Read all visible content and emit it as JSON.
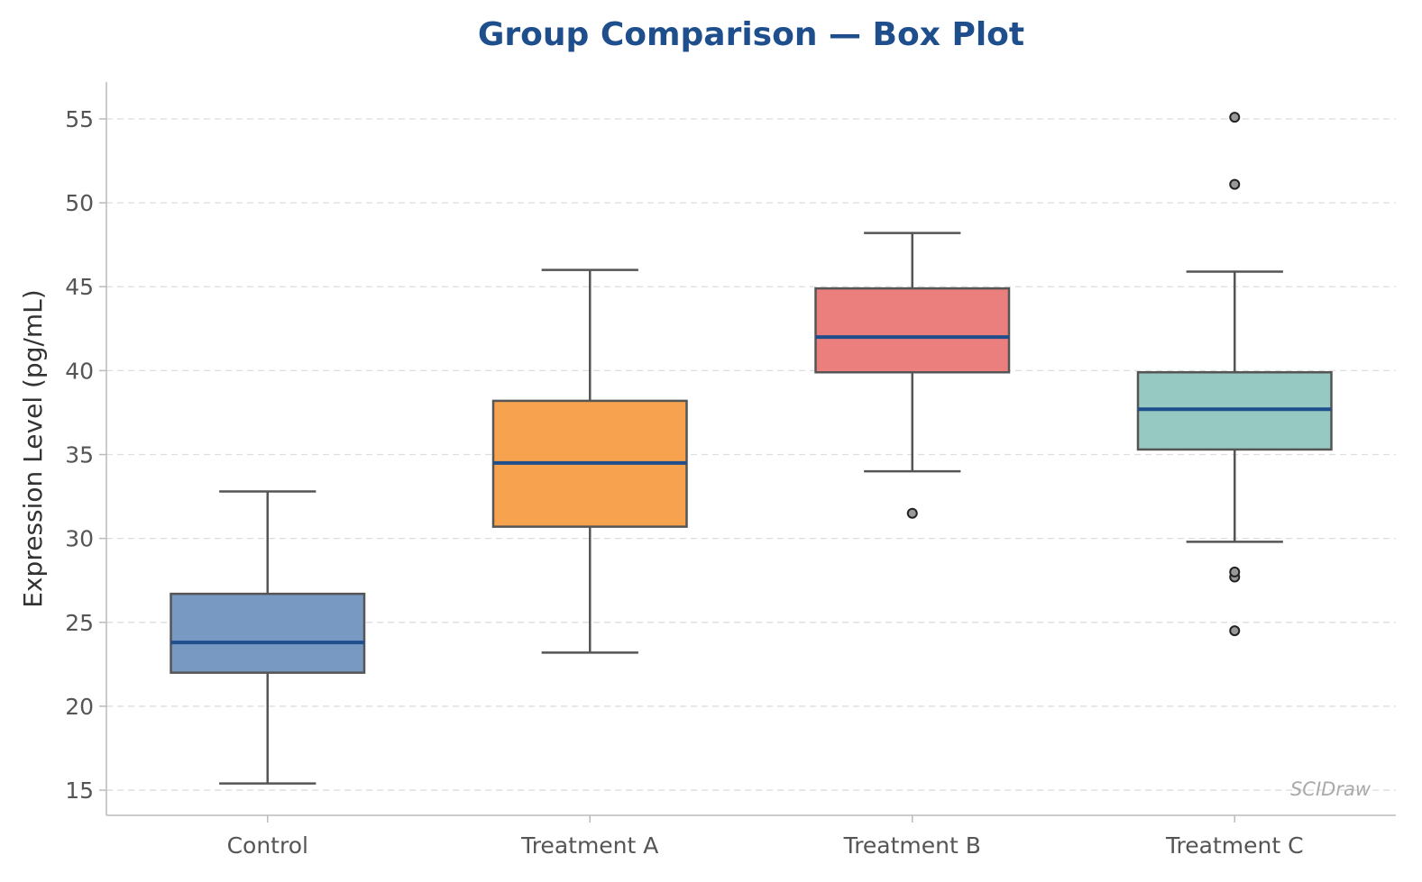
{
  "chart_data": {
    "type": "box",
    "title": "Group Comparison — Box Plot",
    "xlabel": "",
    "ylabel": "Expression Level (pg/mL)",
    "ylim": [
      13.5,
      57.2
    ],
    "yticks": [
      15,
      20,
      25,
      30,
      35,
      40,
      45,
      50,
      55
    ],
    "grid": "y-dashed",
    "categories": [
      "Control",
      "Treatment A",
      "Treatment B",
      "Treatment C"
    ],
    "groups": [
      {
        "name": "Control",
        "whisker_low": 15.4,
        "q1": 22.0,
        "median": 23.8,
        "q3": 26.7,
        "whisker_high": 32.8,
        "outliers": [],
        "color": "#7799c2"
      },
      {
        "name": "Treatment A",
        "whisker_low": 23.2,
        "q1": 30.7,
        "median": 34.5,
        "q3": 38.2,
        "whisker_high": 46.0,
        "outliers": [],
        "color": "#f7a24f"
      },
      {
        "name": "Treatment B",
        "whisker_low": 34.0,
        "q1": 39.9,
        "median": 42.0,
        "q3": 44.9,
        "whisker_high": 48.2,
        "outliers": [
          31.5
        ],
        "color": "#eb7f7e"
      },
      {
        "name": "Treatment C",
        "whisker_low": 29.8,
        "q1": 35.3,
        "median": 37.7,
        "q3": 39.9,
        "whisker_high": 45.9,
        "outliers": [
          24.5,
          27.7,
          28.0,
          51.1,
          55.1
        ],
        "color": "#96c9c2"
      }
    ],
    "watermark": "SCIDraw"
  },
  "colors": {
    "title": "#1f4e8c",
    "median": "#1f4e8c",
    "box_edge": "#555555",
    "whisker": "#555555",
    "grid": "#dddddd",
    "axis": "#bbbbbb",
    "outlier_fill": "#999999",
    "outlier_edge": "#222222"
  }
}
